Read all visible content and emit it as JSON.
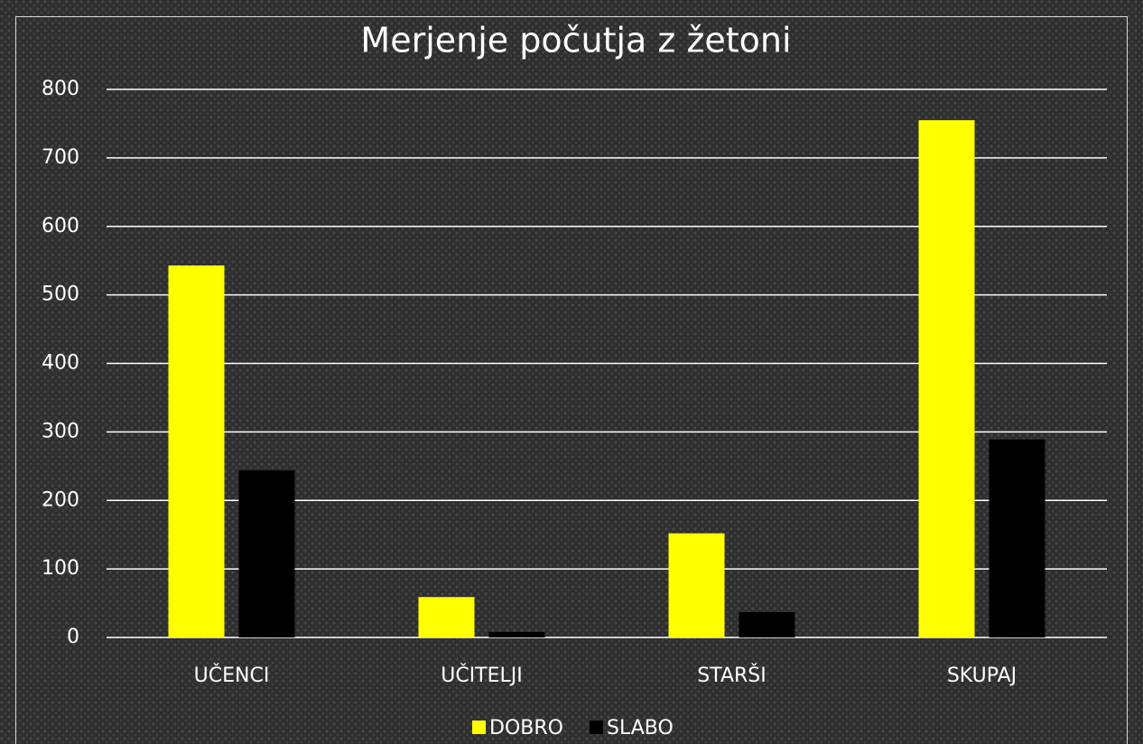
{
  "chart_data": {
    "type": "bar",
    "title": "Merjenje počutja z žetoni",
    "categories": [
      "UČENCI",
      "UČITELJI",
      "STARŠI",
      "SKUPAJ"
    ],
    "series": [
      {
        "name": "DOBRO",
        "color": "#ffff00",
        "values": [
          543,
          59,
          152,
          755
        ]
      },
      {
        "name": "SLABO",
        "color": "#000000",
        "values": [
          244,
          8,
          37,
          289
        ]
      }
    ],
    "ylim": [
      0,
      800
    ],
    "yticks": [
      0,
      100,
      200,
      300,
      400,
      500,
      600,
      700,
      800
    ],
    "grid": true,
    "legend": "bottom"
  }
}
